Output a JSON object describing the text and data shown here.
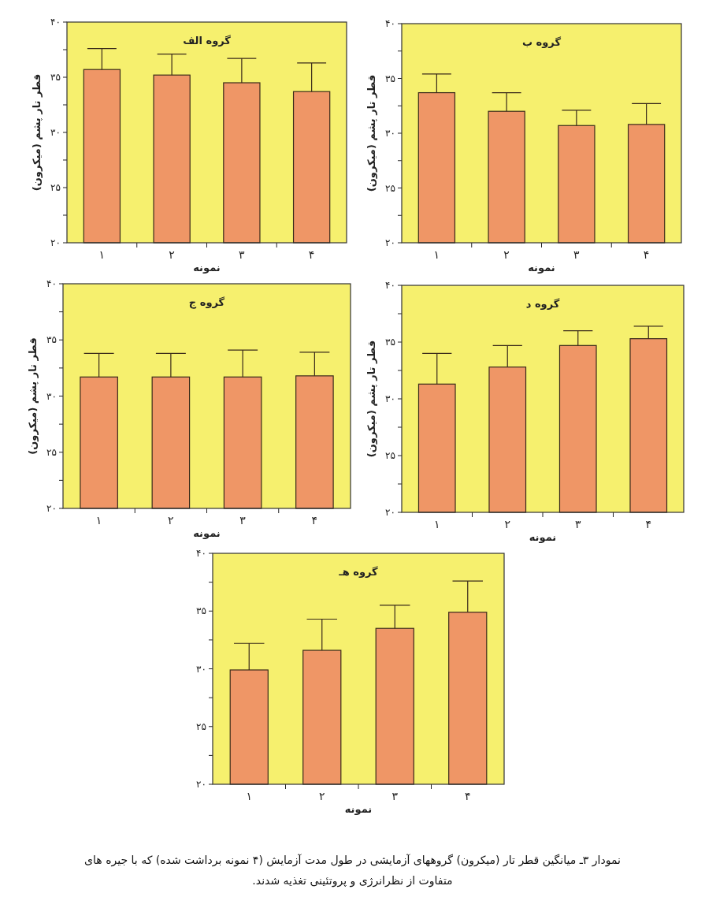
{
  "chart_data": [
    {
      "type": "bar",
      "title": "گروه الف",
      "xlabel": "نمونه",
      "ylabel": "قطر تار پشم (میکرون)",
      "categories": [
        "۱",
        "۲",
        "۳",
        "۴"
      ],
      "series": [
        {
          "color": "#ef9666",
          "values": [
            35.7,
            35.2,
            34.5,
            33.7
          ],
          "errors": [
            [
              35.7,
              37.6
            ],
            [
              35.2,
              37.1
            ],
            [
              34.5,
              36.7
            ],
            [
              33.7,
              36.3
            ]
          ]
        }
      ],
      "ylim": [
        20,
        40
      ],
      "yticks": [
        {
          "value": 20,
          "label": "۲۰"
        },
        {
          "value": 22.5,
          "label": null
        },
        {
          "value": 25,
          "label": "۲۵"
        },
        {
          "value": 27.5,
          "label": null
        },
        {
          "value": 30,
          "label": "۳۰"
        },
        {
          "value": 32.5,
          "label": null
        },
        {
          "value": 35,
          "label": "۳۵"
        },
        {
          "value": 37.5,
          "label": null
        },
        {
          "value": 40,
          "label": "۴۰"
        }
      ]
    },
    {
      "type": "bar",
      "title": "گروه ب",
      "xlabel": "نمونه",
      "ylabel": "قطر تار پشم (میکرون)",
      "categories": [
        "۱",
        "۲",
        "۳",
        "۴"
      ],
      "series": [
        {
          "color": "#ef9666",
          "values": [
            33.7,
            32.0,
            30.7,
            30.8
          ],
          "errors": [
            [
              33.7,
              35.4
            ],
            [
              32.0,
              33.7
            ],
            [
              30.7,
              32.1
            ],
            [
              30.8,
              32.7
            ]
          ]
        }
      ],
      "ylim": [
        20,
        40
      ],
      "yticks": [
        {
          "value": 20,
          "label": "۲۰"
        },
        {
          "value": 22.5,
          "label": null
        },
        {
          "value": 25,
          "label": "۲۵"
        },
        {
          "value": 27.5,
          "label": null
        },
        {
          "value": 30,
          "label": "۳۰"
        },
        {
          "value": 32.5,
          "label": null
        },
        {
          "value": 35,
          "label": "۳۵"
        },
        {
          "value": 37.5,
          "label": null
        },
        {
          "value": 40,
          "label": "۴۰"
        }
      ]
    },
    {
      "type": "bar",
      "title": "گروه ج",
      "xlabel": "نمونه",
      "ylabel": "قطر تار پشم (میکرون)",
      "categories": [
        "۱",
        "۲",
        "۳",
        "۴"
      ],
      "series": [
        {
          "color": "#ef9666",
          "values": [
            31.7,
            31.7,
            31.7,
            31.8
          ],
          "errors": [
            [
              31.7,
              33.8
            ],
            [
              31.7,
              33.8
            ],
            [
              31.7,
              34.1
            ],
            [
              31.8,
              33.9
            ]
          ]
        }
      ],
      "ylim": [
        20,
        40
      ],
      "yticks": [
        {
          "value": 20,
          "label": "۲۰"
        },
        {
          "value": 22.5,
          "label": null
        },
        {
          "value": 25,
          "label": "۲۵"
        },
        {
          "value": 27.5,
          "label": null
        },
        {
          "value": 30,
          "label": "۳۰"
        },
        {
          "value": 32.5,
          "label": null
        },
        {
          "value": 35,
          "label": "۳۵"
        },
        {
          "value": 37.5,
          "label": null
        },
        {
          "value": 40,
          "label": "۴۰"
        }
      ]
    },
    {
      "type": "bar",
      "title": "گروه د",
      "xlabel": "نمونه",
      "ylabel": "قطر تار پشم (میکرون)",
      "categories": [
        "۱",
        "۲",
        "۳",
        "۴"
      ],
      "series": [
        {
          "color": "#ef9666",
          "values": [
            31.3,
            32.8,
            34.7,
            35.3
          ],
          "errors": [
            [
              31.3,
              34.0
            ],
            [
              32.8,
              34.7
            ],
            [
              34.7,
              36.0
            ],
            [
              35.3,
              36.4
            ]
          ]
        }
      ],
      "ylim": [
        20,
        40
      ],
      "yticks": [
        {
          "value": 20,
          "label": "۲۰"
        },
        {
          "value": 22.5,
          "label": null
        },
        {
          "value": 25,
          "label": "۲۵"
        },
        {
          "value": 27.5,
          "label": null
        },
        {
          "value": 30,
          "label": "۳۰"
        },
        {
          "value": 32.5,
          "label": null
        },
        {
          "value": 35,
          "label": "۳۵"
        },
        {
          "value": 37.5,
          "label": null
        },
        {
          "value": 40,
          "label": "۴۰"
        }
      ]
    },
    {
      "type": "bar",
      "title": "گروه هـ",
      "xlabel": "نمونه",
      "categories": [
        "۱",
        "۲",
        "۳",
        "۴"
      ],
      "series": [
        {
          "color": "#ef9666",
          "values": [
            29.9,
            31.6,
            33.5,
            34.9
          ],
          "errors": [
            [
              29.9,
              32.2
            ],
            [
              31.6,
              34.3
            ],
            [
              33.5,
              35.5
            ],
            [
              34.9,
              37.6
            ]
          ]
        }
      ],
      "ylim": [
        20,
        40
      ],
      "yticks": [
        {
          "value": 20,
          "label": "۲۰"
        },
        {
          "value": 22.5,
          "label": null
        },
        {
          "value": 25,
          "label": "۲۵"
        },
        {
          "value": 27.5,
          "label": null
        },
        {
          "value": 30,
          "label": "۳۰"
        },
        {
          "value": 32.5,
          "label": null
        },
        {
          "value": 35,
          "label": "۳۵"
        },
        {
          "value": 37.5,
          "label": null
        },
        {
          "value": 40,
          "label": "۴۰"
        }
      ],
      "annotations": [
        "نمودار ۳ـ میانگین قطر تار (میکرون) گروههای آزمایشی در طول مدت آزمایش (۴ نمونه برداشت شده) که با جیره های متفاوت از نظرانرژی و پروتئینی تغذیه شدند."
      ]
    }
  ]
}
